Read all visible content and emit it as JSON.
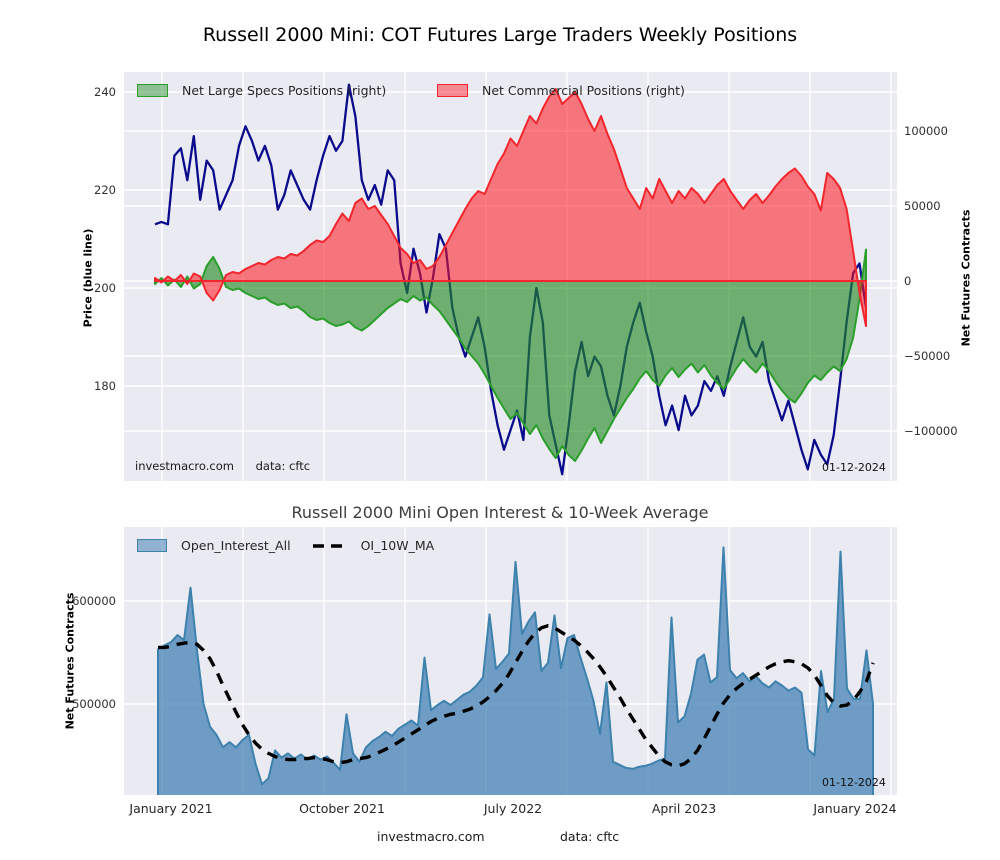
{
  "colors": {
    "plot_background": "#eaeaf2",
    "grid": "#ffffff",
    "price_line": "#0a0a8c",
    "specs_fill": "rgba(34,139,34,0.62)",
    "specs_stroke": "#2b9e2b",
    "commercials_fill": "rgba(255,20,30,0.55)",
    "commercials_stroke": "#f2262c",
    "open_interest_fill": "rgba(70,130,180,0.75)",
    "open_interest_stroke": "#3d81ad",
    "ma_line": "#000000"
  },
  "footer": {
    "watermark": "investmacro.com",
    "source": "data: cftc"
  },
  "chart_data": [
    {
      "id": "cot-positions",
      "type": "area",
      "title": "Russell 2000 Mini: COT Futures Large Traders Weekly Positions",
      "legend": [
        {
          "label": "Net Large Specs Positions (right)",
          "color": "#2b9e2b"
        },
        {
          "label": "Net Commercial Positions (right)",
          "color": "#f2262c"
        }
      ],
      "watermark": "investmacro.com",
      "source": "data: cftc",
      "date_label": "01-12-2024",
      "y_left": {
        "label": "Price (blue line)",
        "ticks": [
          "240",
          "220",
          "200",
          "180"
        ],
        "tick_values": [
          240,
          220,
          200,
          180
        ],
        "range": [
          156,
          244
        ]
      },
      "y_right": {
        "label": "Net Futures Contracts",
        "ticks": [
          "100000",
          "50000",
          "0",
          "−50000",
          "−100000"
        ],
        "tick_values": [
          100000,
          50000,
          0,
          -50000,
          -100000
        ],
        "range": [
          -139000,
          139000
        ]
      },
      "x_axis": {
        "start": "January 2021",
        "end": "January 2024",
        "tick_labels": []
      },
      "series": [
        {
          "name": "Price",
          "axis": "left",
          "style": "line",
          "values": [
            213,
            213.5,
            213,
            227,
            228.5,
            222,
            231,
            218,
            226,
            224,
            216,
            219,
            222,
            229,
            233,
            230,
            226,
            229,
            225,
            216,
            219,
            224,
            221,
            218,
            216,
            222,
            227,
            231,
            228,
            230,
            241.5,
            235,
            222,
            218,
            221,
            217,
            224,
            222,
            205,
            199,
            208,
            203,
            195,
            202,
            211,
            208,
            196,
            190,
            186,
            190,
            194,
            188,
            179,
            172,
            167,
            171,
            175,
            169,
            190,
            200,
            193,
            174,
            168,
            162,
            172,
            183,
            189,
            182,
            186,
            184,
            178,
            174,
            180,
            188,
            193,
            197,
            191,
            186,
            178,
            172,
            176,
            171,
            178,
            174,
            176,
            181,
            179,
            182,
            178,
            184,
            189,
            194,
            188,
            186,
            189,
            181,
            177,
            173,
            177,
            172,
            167,
            163,
            169,
            166,
            164,
            170,
            181,
            193,
            203,
            205,
            196
          ]
        },
        {
          "name": "Net Large Specs Positions",
          "axis": "right",
          "style": "area",
          "values": [
            -2000,
            2000,
            -3000,
            1000,
            -4000,
            3000,
            -5000,
            -2000,
            10000,
            16000,
            8000,
            -4000,
            -6000,
            -5000,
            -8000,
            -10000,
            -12000,
            -11000,
            -14000,
            -16000,
            -15000,
            -18000,
            -17000,
            -20000,
            -24000,
            -26000,
            -25000,
            -28000,
            -30000,
            -29000,
            -27000,
            -31000,
            -33000,
            -30000,
            -26000,
            -22000,
            -18000,
            -15000,
            -12000,
            -14000,
            -10000,
            -13000,
            -11000,
            -16000,
            -20000,
            -26000,
            -32000,
            -38000,
            -45000,
            -50000,
            -55000,
            -62000,
            -70000,
            -78000,
            -85000,
            -92000,
            -88000,
            -95000,
            -102000,
            -96000,
            -105000,
            -112000,
            -118000,
            -110000,
            -116000,
            -120000,
            -113000,
            -105000,
            -98000,
            -108000,
            -100000,
            -92000,
            -85000,
            -78000,
            -72000,
            -65000,
            -60000,
            -66000,
            -70000,
            -63000,
            -58000,
            -64000,
            -59000,
            -55000,
            -61000,
            -56000,
            -63000,
            -68000,
            -72000,
            -65000,
            -58000,
            -52000,
            -57000,
            -61000,
            -55000,
            -60000,
            -67000,
            -73000,
            -78000,
            -81000,
            -75000,
            -68000,
            -63000,
            -66000,
            -61000,
            -57000,
            -60000,
            -52000,
            -38000,
            -12000,
            21000
          ]
        },
        {
          "name": "Net Commercial Positions",
          "axis": "right",
          "style": "area",
          "values": [
            2000,
            -1000,
            3000,
            0,
            4000,
            -2000,
            5000,
            3000,
            -8000,
            -13000,
            -6000,
            4000,
            6000,
            5000,
            8000,
            10000,
            12000,
            11000,
            14000,
            16000,
            15000,
            18000,
            17000,
            20000,
            24000,
            27000,
            26000,
            30000,
            38000,
            45000,
            40000,
            52000,
            55000,
            48000,
            50000,
            44000,
            38000,
            30000,
            22000,
            18000,
            12000,
            14000,
            8000,
            10000,
            16000,
            24000,
            32000,
            40000,
            48000,
            55000,
            60000,
            58000,
            68000,
            78000,
            85000,
            95000,
            90000,
            100000,
            110000,
            105000,
            115000,
            123000,
            128000,
            118000,
            122000,
            126000,
            118000,
            108000,
            100000,
            110000,
            98000,
            88000,
            75000,
            62000,
            55000,
            48000,
            62000,
            55000,
            68000,
            60000,
            52000,
            60000,
            55000,
            62000,
            58000,
            52000,
            58000,
            64000,
            68000,
            60000,
            54000,
            48000,
            54000,
            58000,
            52000,
            57000,
            63000,
            68000,
            72000,
            75000,
            70000,
            63000,
            58000,
            47000,
            72000,
            68000,
            62000,
            48000,
            20000,
            -8000,
            -30000
          ]
        }
      ]
    },
    {
      "id": "open-interest",
      "type": "area",
      "title": "Russell 2000 Mini Open Interest & 10-Week Average",
      "legend": [
        {
          "label": "Open_Interest_All",
          "color": "#3d81ad"
        },
        {
          "label": "OI_10W_MA",
          "color": "#000000"
        }
      ],
      "date_label": "01-12-2024",
      "y_left": {
        "label": "Net Futures Contracts",
        "ticks": [
          "600000",
          "500000"
        ],
        "tick_values": [
          600000,
          500000
        ],
        "range": [
          412000,
          672000
        ]
      },
      "x_axis": {
        "tick_labels": [
          "January 2021",
          "October 2021",
          "July 2022",
          "April 2023",
          "January 2024"
        ]
      },
      "series": [
        {
          "name": "Open_Interest_All",
          "style": "area",
          "values": [
            553000,
            557000,
            560000,
            567000,
            562000,
            613000,
            552000,
            500000,
            478000,
            470000,
            458000,
            463000,
            458000,
            465000,
            470000,
            442000,
            422000,
            428000,
            455000,
            448000,
            452000,
            447000,
            451000,
            446000,
            450000,
            446000,
            449000,
            443000,
            436000,
            490000,
            452000,
            444000,
            458000,
            464000,
            468000,
            473000,
            469000,
            476000,
            480000,
            484000,
            479000,
            545000,
            494000,
            499000,
            503000,
            499000,
            504000,
            509000,
            512000,
            518000,
            526000,
            587000,
            534000,
            541000,
            549000,
            638000,
            568000,
            580000,
            589000,
            532000,
            540000,
            586000,
            535000,
            564000,
            567000,
            545000,
            525000,
            503000,
            471000,
            521000,
            444000,
            441000,
            438000,
            437000,
            439000,
            440000,
            442000,
            445000,
            447000,
            584000,
            482000,
            488000,
            510000,
            543000,
            548000,
            521000,
            526000,
            652000,
            533000,
            525000,
            530000,
            522000,
            527000,
            520000,
            516000,
            522000,
            518000,
            513000,
            516000,
            511000,
            456000,
            450000,
            532000,
            492000,
            505000,
            648000,
            515000,
            505000,
            505000,
            552000,
            500000
          ]
        },
        {
          "name": "OI_10W_MA",
          "style": "dashed-line",
          "values": [
            555000,
            555000,
            556000,
            558000,
            559000,
            560000,
            558000,
            552000,
            544000,
            532000,
            518000,
            505000,
            492000,
            480000,
            470000,
            462000,
            456000,
            452000,
            449000,
            447000,
            446000,
            446000,
            447000,
            447000,
            448000,
            447000,
            446000,
            444000,
            443000,
            444000,
            446000,
            447000,
            448000,
            450000,
            453000,
            456000,
            459000,
            463000,
            467000,
            471000,
            475000,
            479000,
            483000,
            486000,
            488000,
            490000,
            491000,
            493000,
            495000,
            498000,
            502000,
            507000,
            513000,
            520000,
            529000,
            540000,
            551000,
            561000,
            569000,
            574000,
            576000,
            574000,
            570000,
            566000,
            562000,
            557000,
            551000,
            544000,
            536000,
            527000,
            517000,
            507000,
            496000,
            486000,
            476000,
            466000,
            458000,
            450000,
            444000,
            441000,
            440000,
            442000,
            447000,
            455000,
            466000,
            478000,
            490000,
            501000,
            509000,
            515000,
            520000,
            524000,
            528000,
            532000,
            536000,
            539000,
            541000,
            542000,
            541000,
            539000,
            535000,
            528000,
            518000,
            508000,
            501000,
            498000,
            499000,
            504000,
            512000,
            522000,
            540000
          ]
        }
      ]
    }
  ]
}
